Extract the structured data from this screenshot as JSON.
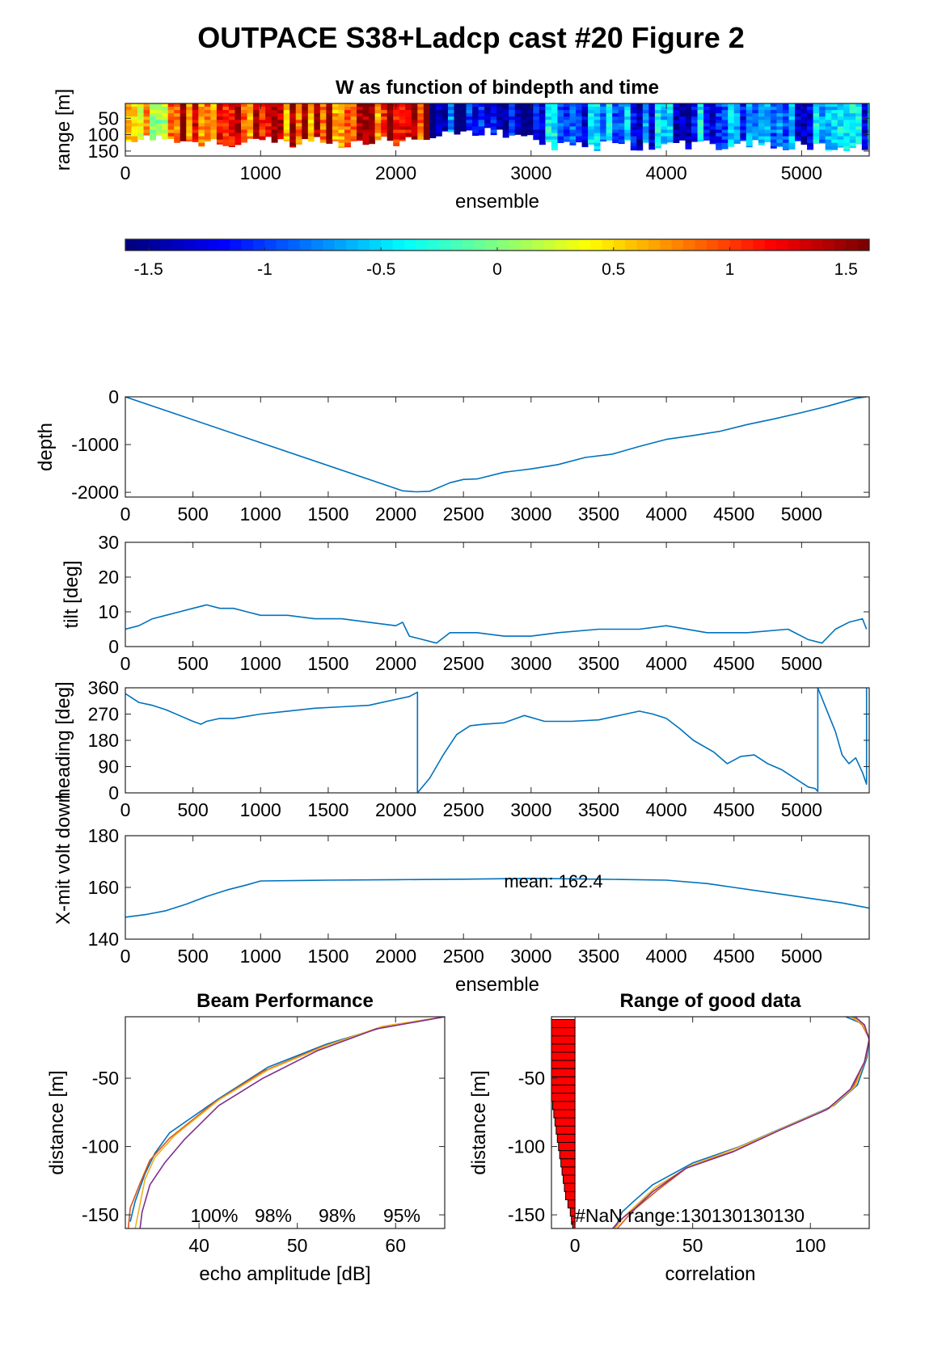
{
  "figure": {
    "title": "OUTPACE S38+Ladcp cast #20 Figure 2"
  },
  "chart_data": [
    {
      "id": "w_image",
      "type": "heatmap",
      "title": "W as function of bindepth and time",
      "xlabel": "ensemble",
      "ylabel": "range [m]",
      "xlim": [
        0,
        5500
      ],
      "ylim": [
        165,
        5
      ],
      "xticks": [
        0,
        1000,
        2000,
        3000,
        4000,
        5000
      ],
      "yticks": [
        50,
        100,
        150
      ],
      "colorbar": {
        "colormap": "jet",
        "clim": [
          -1.6,
          1.6
        ],
        "ticks": [
          -1.5,
          -1,
          -0.5,
          0,
          0.5,
          1,
          1.5
        ]
      },
      "regions": [
        {
          "x": [
            0,
            300
          ],
          "w_mean": 0.4,
          "range_max": 130
        },
        {
          "x": [
            300,
            2250
          ],
          "w_mean": 1.1,
          "range_max": 140
        },
        {
          "x": [
            2250,
            3000
          ],
          "w_mean": -1.2,
          "range_max": 110
        },
        {
          "x": [
            3000,
            5500
          ],
          "w_mean": -0.9,
          "range_max": 150
        }
      ]
    },
    {
      "id": "depth",
      "type": "line",
      "ylabel": "depth",
      "xlim": [
        0,
        5500
      ],
      "ylim": [
        -2100,
        0
      ],
      "xticks": [
        0,
        500,
        1000,
        1500,
        2000,
        2500,
        3000,
        3500,
        4000,
        4500,
        5000
      ],
      "yticks": [
        -2000,
        -1000,
        0
      ],
      "color": "#0072BD",
      "series": [
        {
          "x": [
            0,
            2050,
            2150,
            2250,
            2400,
            2500,
            2600,
            2800,
            3000,
            3200,
            3400,
            3600,
            3800,
            4000,
            4200,
            4400,
            4600,
            4800,
            5000,
            5200,
            5400,
            5480
          ],
          "y": [
            0,
            -1970,
            -1990,
            -1980,
            -1800,
            -1730,
            -1720,
            -1580,
            -1510,
            -1420,
            -1270,
            -1200,
            -1040,
            -890,
            -810,
            -720,
            -580,
            -460,
            -330,
            -190,
            -30,
            0
          ]
        }
      ]
    },
    {
      "id": "tilt",
      "type": "line",
      "ylabel": "tilt [deg]",
      "xlim": [
        0,
        5500
      ],
      "ylim": [
        0,
        30
      ],
      "xticks": [
        0,
        500,
        1000,
        1500,
        2000,
        2500,
        3000,
        3500,
        4000,
        4500,
        5000
      ],
      "yticks": [
        0,
        10,
        20,
        30
      ],
      "color": "#0072BD",
      "series": [
        {
          "x": [
            0,
            100,
            200,
            300,
            400,
            500,
            600,
            700,
            800,
            900,
            1000,
            1200,
            1400,
            1600,
            1800,
            2000,
            2050,
            2100,
            2200,
            2300,
            2400,
            2600,
            2800,
            3000,
            3200,
            3500,
            3800,
            4000,
            4300,
            4600,
            4900,
            5050,
            5150,
            5250,
            5350,
            5450,
            5480
          ],
          "y": [
            5,
            6,
            8,
            9,
            10,
            11,
            12,
            11,
            11,
            10,
            9,
            9,
            8,
            8,
            7,
            6,
            7,
            3,
            2,
            1,
            4,
            4,
            3,
            3,
            4,
            5,
            5,
            6,
            4,
            4,
            5,
            2,
            1,
            5,
            7,
            8,
            5
          ]
        }
      ]
    },
    {
      "id": "heading",
      "type": "line",
      "ylabel": "heading [deg]",
      "xlim": [
        0,
        5500
      ],
      "ylim": [
        0,
        360
      ],
      "xticks": [
        0,
        500,
        1000,
        1500,
        2000,
        2500,
        3000,
        3500,
        4000,
        4500,
        5000
      ],
      "yticks": [
        0,
        90,
        180,
        270,
        360
      ],
      "color": "#0072BD",
      "series": [
        {
          "x": [
            0,
            100,
            200,
            300,
            400,
            500,
            560,
            600,
            700,
            800,
            1000,
            1200,
            1400,
            1600,
            1800,
            2000,
            2100,
            2160,
            2160,
            2250,
            2350,
            2450,
            2550,
            2650,
            2800,
            2950,
            3100,
            3300,
            3500,
            3700,
            3800,
            3900,
            4000,
            4100,
            4200,
            4350,
            4450,
            4550,
            4650,
            4750,
            4850,
            4950,
            5050,
            5100,
            5120,
            5120,
            5180,
            5250,
            5300,
            5350,
            5400,
            5450,
            5480,
            5480
          ],
          "y": [
            340,
            310,
            300,
            285,
            265,
            245,
            235,
            245,
            255,
            255,
            270,
            280,
            290,
            295,
            300,
            320,
            330,
            345,
            0,
            50,
            130,
            200,
            230,
            235,
            240,
            265,
            245,
            245,
            250,
            270,
            280,
            270,
            255,
            220,
            180,
            140,
            100,
            125,
            130,
            100,
            80,
            50,
            20,
            15,
            5,
            360,
            290,
            210,
            130,
            100,
            120,
            70,
            30,
            360
          ]
        }
      ]
    },
    {
      "id": "xmit_voltage",
      "type": "line",
      "ylabel": "X-mit volt down",
      "xlabel": "ensemble",
      "xlim": [
        0,
        5500
      ],
      "ylim": [
        140,
        180
      ],
      "xticks": [
        0,
        500,
        1000,
        1500,
        2000,
        2500,
        3000,
        3500,
        4000,
        4500,
        5000
      ],
      "yticks": [
        140,
        160,
        180
      ],
      "annotation": "mean: 162.4",
      "color": "#0072BD",
      "series": [
        {
          "x": [
            0,
            150,
            300,
            450,
            600,
            750,
            900,
            1000,
            1500,
            2000,
            2500,
            3000,
            3500,
            4000,
            4300,
            4500,
            4700,
            4900,
            5100,
            5300,
            5500
          ],
          "y": [
            148.5,
            149.5,
            151,
            153.5,
            156.5,
            159,
            161,
            162.5,
            162.8,
            163,
            163.2,
            163.5,
            163.2,
            162.8,
            161.5,
            160,
            158.5,
            157,
            155.5,
            154,
            152
          ]
        }
      ]
    },
    {
      "id": "beam_performance",
      "type": "line",
      "title": "Beam Performance",
      "xlabel": "echo amplitude [dB]",
      "ylabel": "distance [m]",
      "xlim": [
        32.5,
        65
      ],
      "ylim": [
        -160,
        -5
      ],
      "xticks": [
        40,
        50,
        60
      ],
      "yticks": [
        -150,
        -100,
        -50
      ],
      "beam_percent_labels": [
        "100%",
        "98%",
        "98%",
        "95%"
      ],
      "series": [
        {
          "color": "#0072BD",
          "x": [
            65,
            59,
            53,
            47,
            42,
            37,
            35.5,
            34.5,
            33.5,
            33
          ],
          "y": [
            -5,
            -12,
            -25,
            -42,
            -65,
            -90,
            -105,
            -120,
            -140,
            -155
          ]
        },
        {
          "color": "#D95319",
          "x": [
            65,
            58.5,
            52.5,
            46.5,
            41.5,
            37,
            35,
            34,
            33,
            32.8
          ],
          "y": [
            -5,
            -13,
            -27,
            -45,
            -68,
            -94,
            -110,
            -127,
            -145,
            -160
          ]
        },
        {
          "color": "#EDB120",
          "x": [
            65,
            58.7,
            53,
            47,
            42,
            37.5,
            35.5,
            34.5,
            34,
            33.5
          ],
          "y": [
            -5,
            -12,
            -26,
            -44,
            -66,
            -92,
            -108,
            -124,
            -142,
            -160
          ]
        },
        {
          "color": "#7E2F8E",
          "x": [
            65,
            58,
            52,
            46.5,
            42,
            38.5,
            36.5,
            35,
            34.2,
            34
          ],
          "y": [
            -5,
            -14,
            -30,
            -50,
            -70,
            -95,
            -112,
            -128,
            -148,
            -160
          ]
        }
      ]
    },
    {
      "id": "range_good_data",
      "type": "line",
      "title": "Range of good data",
      "xlabel": "correlation",
      "ylabel": "distance [m]",
      "xlim": [
        -10,
        125
      ],
      "ylim": [
        -160,
        -5
      ],
      "xticks": [
        0,
        50,
        100
      ],
      "yticks": [
        -150,
        -100,
        -50
      ],
      "annotation": "#NaN range:130130130130",
      "nan_bins": {
        "color": "#FF0000",
        "depth": [
          -10,
          -16,
          -22,
          -28,
          -34,
          -40,
          -46,
          -52,
          -58,
          -64,
          -70,
          -76,
          -82,
          -88,
          -94,
          -100,
          -106,
          -112,
          -118,
          -124,
          -130,
          -136,
          -142,
          -148,
          -154,
          -158
        ],
        "value": [
          -10,
          -10,
          -10,
          -10,
          -10,
          -10,
          -10,
          -10,
          -10,
          -10,
          -9.5,
          -9,
          -8.5,
          -8,
          -7.5,
          -7,
          -6.5,
          -6,
          -5.5,
          -5,
          -4.5,
          -4,
          -3,
          -2,
          -1.5,
          -1
        ]
      },
      "series": [
        {
          "color": "#0072BD",
          "x": [
            115,
            122,
            125,
            124,
            120,
            110,
            90,
            70,
            50,
            33,
            25,
            20,
            17
          ],
          "y": [
            -5,
            -10,
            -20,
            -35,
            -55,
            -70,
            -85,
            -100,
            -112,
            -128,
            -140,
            -148,
            -160
          ]
        },
        {
          "color": "#D95319",
          "x": [
            118,
            122,
            125,
            123,
            118,
            108,
            88,
            68,
            48,
            35,
            26,
            22,
            18
          ],
          "y": [
            -5,
            -11,
            -21,
            -38,
            -57,
            -72,
            -87,
            -103,
            -115,
            -132,
            -145,
            -152,
            -160
          ]
        },
        {
          "color": "#EDB120",
          "x": [
            117,
            122,
            125,
            123.5,
            119,
            109,
            89,
            69,
            49,
            34,
            26,
            21,
            17
          ],
          "y": [
            -5,
            -10,
            -20,
            -36,
            -56,
            -71,
            -86,
            -101,
            -114,
            -130,
            -143,
            -151,
            -160
          ]
        },
        {
          "color": "#7E2F8E",
          "x": [
            119,
            123,
            125,
            123,
            117,
            107,
            87,
            67,
            47,
            33,
            25,
            19,
            16
          ],
          "y": [
            -5,
            -11,
            -22,
            -38,
            -58,
            -73,
            -88,
            -104,
            -116,
            -133,
            -146,
            -154,
            -160
          ]
        }
      ]
    }
  ]
}
